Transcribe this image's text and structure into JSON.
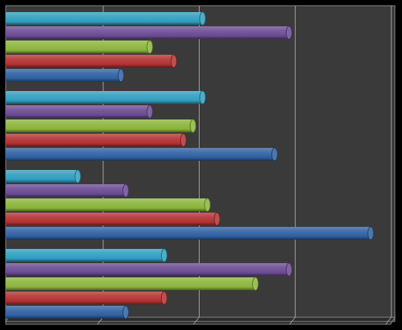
{
  "chart_data": {
    "type": "bar",
    "orientation": "horizontal",
    "style": "3d-cylinder",
    "background": "#000000",
    "plot_background": "#3a3a3a",
    "gridlines": true,
    "legend": "none",
    "xlim": [
      0,
      4
    ],
    "categories": [
      "",
      "",
      "",
      ""
    ],
    "series": [
      {
        "color": "#2e5fa0",
        "values": [
          1.2,
          2.8,
          3.8,
          1.25
        ]
      },
      {
        "color": "#b33030",
        "values": [
          1.75,
          1.85,
          2.2,
          1.65
        ]
      },
      {
        "color": "#8ab43a",
        "values": [
          1.5,
          1.95,
          2.1,
          2.6
        ]
      },
      {
        "color": "#6a4a92",
        "values": [
          2.95,
          1.5,
          1.25,
          2.95
        ]
      },
      {
        "color": "#2f9ebf",
        "values": [
          2.05,
          2.05,
          0.75,
          1.65
        ]
      }
    ]
  }
}
